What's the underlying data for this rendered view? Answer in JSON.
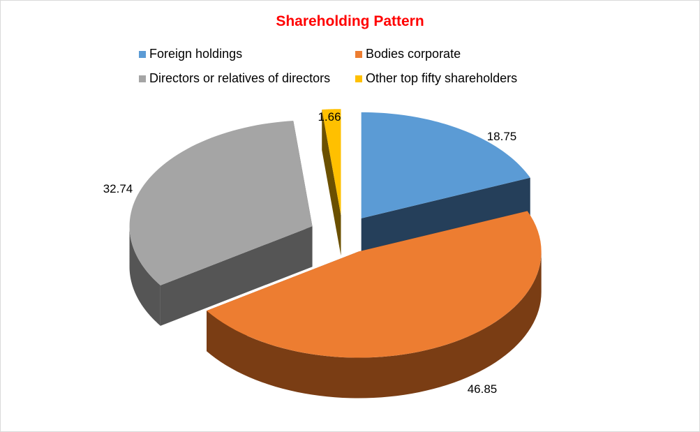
{
  "chart_data": {
    "type": "pie",
    "style": "3d-exploded",
    "title": "Shareholding Pattern",
    "legend_position": "top",
    "series": [
      {
        "name": "Foreign holdings",
        "value": 18.75,
        "label": "18.75",
        "color": "#5b9bd5",
        "side_color": "#253f5a"
      },
      {
        "name": "Bodies corporate",
        "value": 46.85,
        "label": "46.85",
        "color": "#ed7d31",
        "side_color": "#7a3d14"
      },
      {
        "name": "Directors or relatives of directors",
        "value": 32.74,
        "label": "32.74",
        "color": "#a5a5a5",
        "side_color": "#555555"
      },
      {
        "name": "Other top fifty shareholders",
        "value": 1.66,
        "label": "1.66",
        "color": "#ffc000",
        "side_color": "#6b5000"
      }
    ]
  }
}
